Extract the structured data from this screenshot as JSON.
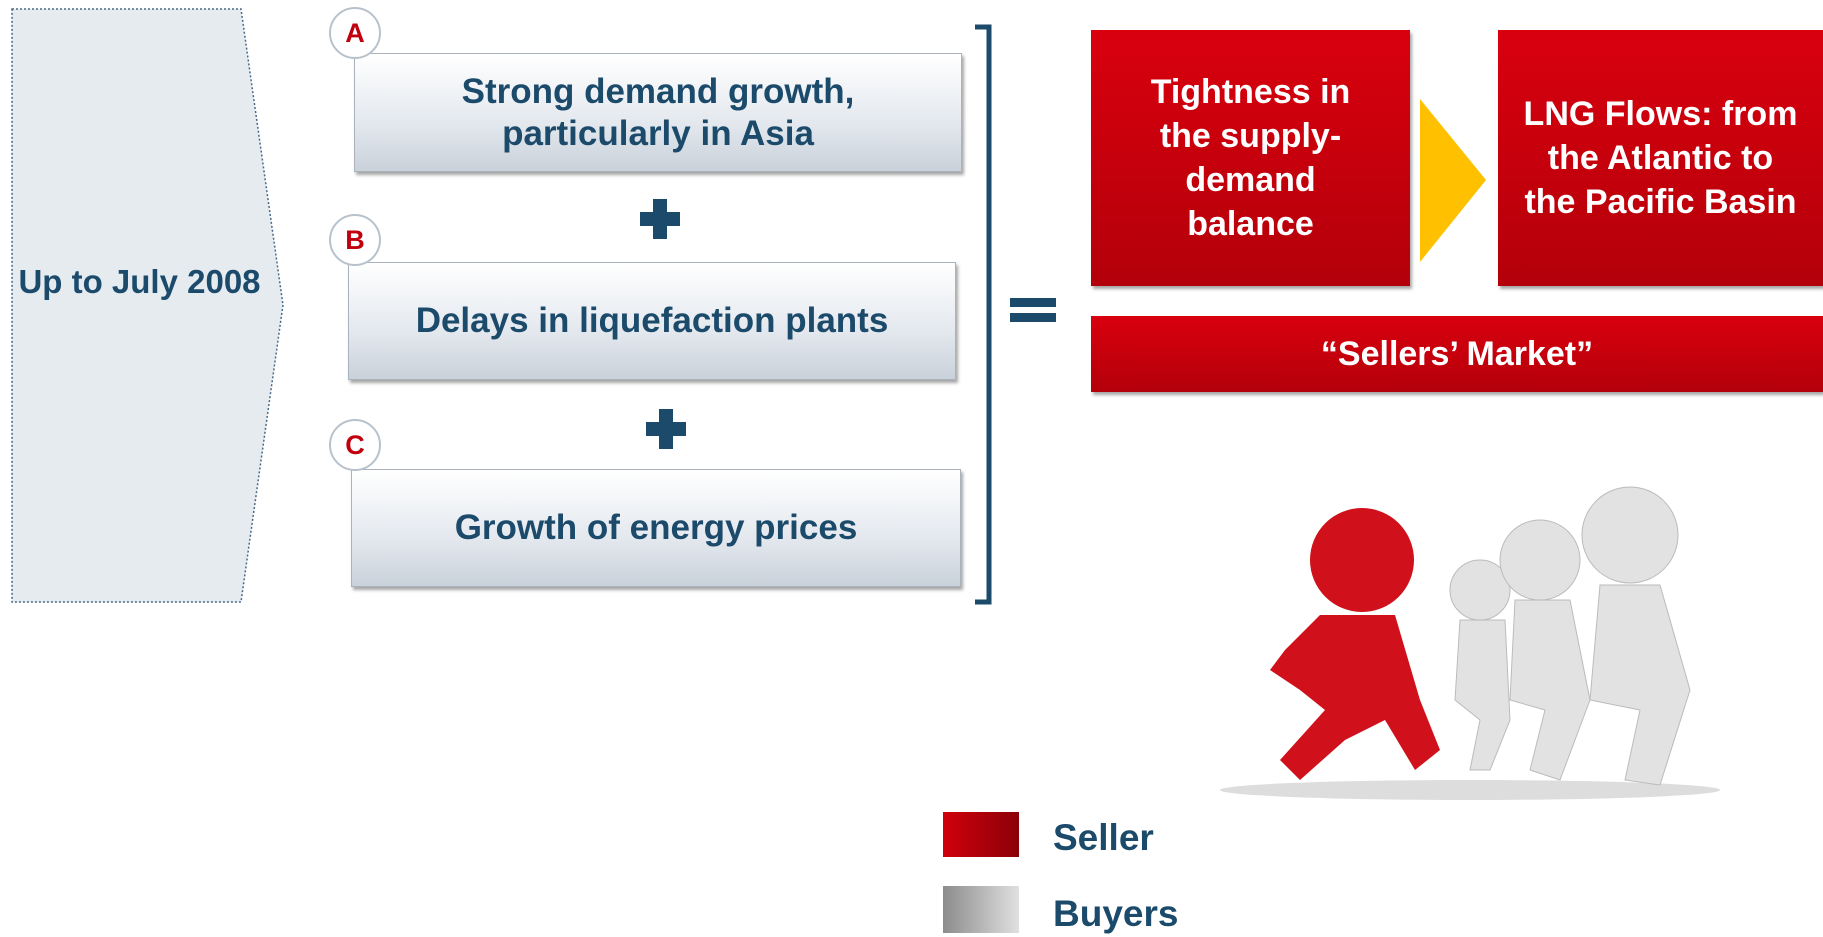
{
  "period": "Up to July 2008",
  "factors": [
    {
      "letter": "A",
      "text": "Strong demand growth, particularly in Asia"
    },
    {
      "letter": "B",
      "text": "Delays in liquefaction plants"
    },
    {
      "letter": "C",
      "text": "Growth of energy prices"
    }
  ],
  "results": [
    "Tightness in the supply-demand balance",
    "LNG Flows: from the Atlantic to the Pacific Basin"
  ],
  "market": "“Sellers’ Market”",
  "legend": [
    "Seller",
    "Buyers"
  ]
}
